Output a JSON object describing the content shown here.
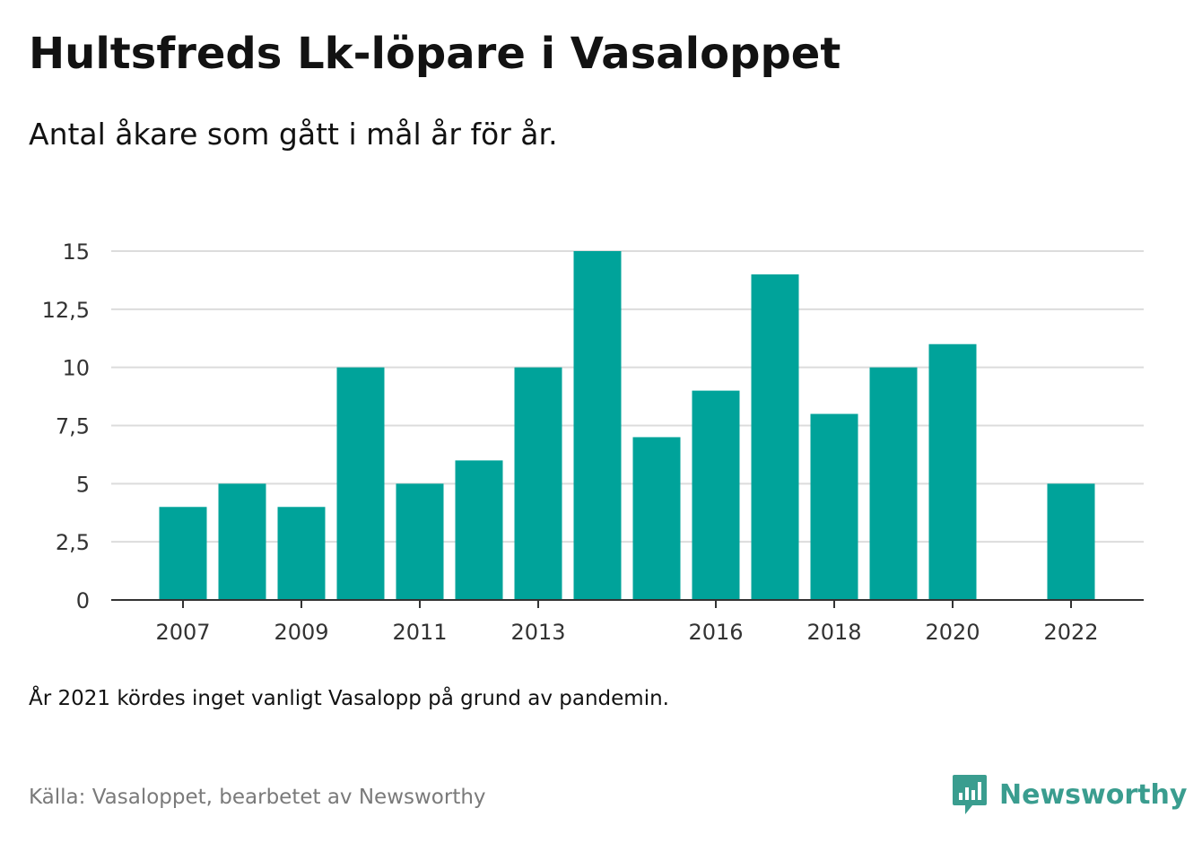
{
  "title": "Hultsfreds Lk-löpare i Vasaloppet",
  "subtitle": "Antal åkare som gått i mål år för år.",
  "note": "År 2021 kördes inget vanligt Vasalopp på grund av pandemin.",
  "source": "Källa: Vasaloppet, bearbetet av Newsworthy",
  "logo": {
    "text": "Newsworthy",
    "icon": "newsworthy-logo-icon",
    "color": "#3a9d8f"
  },
  "colors": {
    "bar": "#00a39a",
    "grid": "#dcdcdc",
    "axis": "#333333",
    "text": "#333333"
  },
  "chart_data": {
    "type": "bar",
    "title": "Hultsfreds Lk-löpare i Vasaloppet",
    "subtitle": "Antal åkare som gått i mål år för år.",
    "categories": [
      "2007",
      "2008",
      "2009",
      "2010",
      "2011",
      "2012",
      "2013",
      "2014",
      "2015",
      "2016",
      "2017",
      "2018",
      "2019",
      "2020",
      "2021",
      "2022"
    ],
    "values": [
      4,
      5,
      4,
      10,
      5,
      6,
      10,
      15,
      7,
      9,
      14,
      8,
      10,
      11,
      null,
      5
    ],
    "x_tick_labels": [
      "2007",
      "2009",
      "2011",
      "2013",
      "2016",
      "2018",
      "2020",
      "2022"
    ],
    "y_ticks": [
      0,
      2.5,
      5,
      7.5,
      10,
      12.5,
      15
    ],
    "y_tick_labels": [
      "0",
      "2,5",
      "5",
      "7,5",
      "10",
      "12,5",
      "15"
    ],
    "ylim": [
      0,
      15
    ],
    "xlabel": "",
    "ylabel": "",
    "grid": true,
    "legend": "none"
  }
}
